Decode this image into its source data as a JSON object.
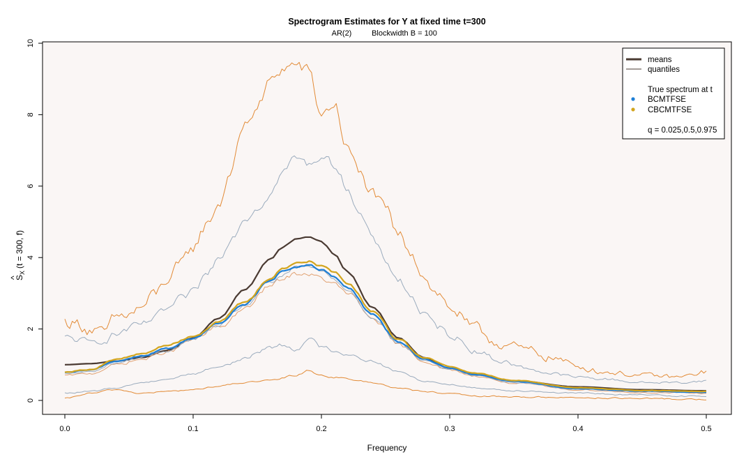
{
  "chart_data": {
    "type": "line",
    "title": "Spectrogram Estimates for Y at fixed time t=300",
    "subtitle_left": "AR(2)",
    "subtitle_right": "Blockwidth B = 100",
    "xlabel": "Frequency",
    "ylabel_hat": "^",
    "ylabel_s": "S",
    "ylabel_sub": "X",
    "ylabel_rest": "(t = 300, f)",
    "xlim": [
      0.0,
      0.5
    ],
    "ylim": [
      0,
      10
    ],
    "xticks": [
      0.0,
      0.1,
      0.2,
      0.3,
      0.4,
      0.5
    ],
    "xtick_labels": [
      "0.0",
      "0.1",
      "0.2",
      "0.3",
      "0.4",
      "0.5"
    ],
    "yticks": [
      0,
      2,
      4,
      6,
      8,
      10
    ],
    "ytick_labels": [
      "0",
      "2",
      "4",
      "6",
      "8",
      "10"
    ],
    "background_color": "#faf6f5",
    "legend": {
      "placement": "top-right",
      "entries": [
        {
          "label": "means",
          "kind": "thick-line",
          "color": "#4a3a32"
        },
        {
          "label": "quantiles",
          "kind": "thin-line",
          "color": "#4a3a32"
        },
        {
          "label": "",
          "kind": "blank"
        },
        {
          "label": "True spectrum at t",
          "kind": "text"
        },
        {
          "label": "BCMTFSE",
          "kind": "point",
          "color": "#1e7fd6"
        },
        {
          "label": "CBCMTFSE",
          "kind": "point",
          "color": "#d2a51e"
        },
        {
          "label": "",
          "kind": "blank"
        },
        {
          "label": "q = 0.025,0.5,0.975",
          "kind": "text"
        }
      ]
    },
    "series": [
      {
        "role": "true-spectrum",
        "color": "#4a3a32",
        "width": 2.2,
        "noise": 0,
        "x": [
          0,
          0.02,
          0.04,
          0.06,
          0.08,
          0.1,
          0.12,
          0.14,
          0.16,
          0.17,
          0.18,
          0.19,
          0.2,
          0.21,
          0.22,
          0.24,
          0.26,
          0.28,
          0.3,
          0.32,
          0.35,
          0.4,
          0.45,
          0.5
        ],
        "y": [
          1.0,
          1.03,
          1.1,
          1.2,
          1.4,
          1.75,
          2.3,
          3.1,
          3.95,
          4.3,
          4.52,
          4.58,
          4.45,
          4.1,
          3.6,
          2.6,
          1.75,
          1.2,
          0.9,
          0.72,
          0.55,
          0.38,
          0.3,
          0.27
        ]
      },
      {
        "role": "CBCMTFSE-q0.975",
        "color": "#e28a35",
        "width": 1.0,
        "noise": 0.16,
        "x": [
          0,
          0.01,
          0.02,
          0.03,
          0.04,
          0.05,
          0.06,
          0.07,
          0.08,
          0.09,
          0.1,
          0.11,
          0.12,
          0.13,
          0.14,
          0.15,
          0.16,
          0.17,
          0.18,
          0.19,
          0.2,
          0.21,
          0.22,
          0.23,
          0.24,
          0.25,
          0.26,
          0.27,
          0.28,
          0.29,
          0.3,
          0.32,
          0.34,
          0.36,
          0.38,
          0.4,
          0.42,
          0.45,
          0.48,
          0.5
        ],
        "y": [
          2.2,
          2.15,
          2.0,
          1.85,
          2.3,
          2.4,
          2.6,
          2.95,
          3.4,
          3.75,
          4.3,
          4.9,
          5.5,
          6.5,
          7.7,
          8.2,
          8.9,
          9.3,
          9.4,
          9.2,
          8.0,
          8.3,
          7.1,
          6.3,
          5.8,
          5.3,
          4.6,
          4.2,
          3.5,
          3.0,
          2.6,
          1.95,
          1.6,
          1.4,
          1.2,
          0.95,
          0.8,
          0.7,
          0.65,
          0.8
        ]
      },
      {
        "role": "BCMTFSE-q0.975",
        "color": "#9aabbd",
        "width": 1.0,
        "noise": 0.1,
        "x": [
          0,
          0.01,
          0.02,
          0.03,
          0.04,
          0.05,
          0.06,
          0.07,
          0.08,
          0.09,
          0.1,
          0.11,
          0.12,
          0.13,
          0.14,
          0.15,
          0.16,
          0.17,
          0.18,
          0.19,
          0.2,
          0.21,
          0.22,
          0.23,
          0.24,
          0.25,
          0.26,
          0.27,
          0.28,
          0.29,
          0.3,
          0.32,
          0.34,
          0.36,
          0.38,
          0.4,
          0.42,
          0.45,
          0.48,
          0.5
        ],
        "y": [
          1.75,
          1.7,
          1.6,
          1.7,
          1.85,
          2.0,
          2.1,
          2.3,
          2.55,
          2.8,
          3.0,
          3.5,
          4.0,
          4.6,
          5.1,
          5.4,
          5.8,
          6.4,
          6.8,
          6.6,
          6.85,
          6.6,
          6.0,
          5.2,
          4.5,
          3.9,
          3.4,
          2.9,
          2.4,
          2.05,
          1.85,
          1.4,
          1.1,
          0.9,
          0.75,
          0.65,
          0.6,
          0.5,
          0.5,
          0.55
        ]
      },
      {
        "role": "CBCMTFSE-q0.5",
        "color": "#e0a070",
        "width": 1.0,
        "noise": 0.06,
        "x": [
          0,
          0.02,
          0.04,
          0.06,
          0.08,
          0.1,
          0.12,
          0.14,
          0.16,
          0.17,
          0.18,
          0.19,
          0.2,
          0.21,
          0.22,
          0.24,
          0.26,
          0.28,
          0.3,
          0.32,
          0.35,
          0.4,
          0.45,
          0.5
        ],
        "y": [
          0.7,
          0.75,
          1.0,
          1.15,
          1.35,
          1.7,
          2.05,
          2.55,
          3.2,
          3.4,
          3.55,
          3.55,
          3.4,
          3.25,
          3.0,
          2.3,
          1.55,
          1.1,
          0.85,
          0.68,
          0.48,
          0.3,
          0.22,
          0.2
        ]
      },
      {
        "role": "BCMTFSE-q0.5",
        "color": "#9aabbd",
        "width": 1.0,
        "noise": 0.05,
        "x": [
          0,
          0.02,
          0.04,
          0.06,
          0.08,
          0.1,
          0.12,
          0.14,
          0.16,
          0.17,
          0.18,
          0.19,
          0.2,
          0.21,
          0.22,
          0.24,
          0.26,
          0.28,
          0.3,
          0.32,
          0.35,
          0.4,
          0.45,
          0.5
        ],
        "y": [
          0.75,
          0.8,
          1.05,
          1.2,
          1.4,
          1.7,
          2.1,
          2.65,
          3.3,
          3.5,
          3.7,
          3.75,
          3.6,
          3.4,
          3.1,
          2.35,
          1.6,
          1.12,
          0.87,
          0.7,
          0.5,
          0.32,
          0.25,
          0.22
        ]
      },
      {
        "role": "BCMTFSE-q0.025",
        "color": "#9aabbd",
        "width": 1.0,
        "noise": 0.07,
        "x": [
          0,
          0.02,
          0.04,
          0.06,
          0.08,
          0.1,
          0.12,
          0.14,
          0.15,
          0.16,
          0.17,
          0.18,
          0.19,
          0.2,
          0.21,
          0.22,
          0.24,
          0.26,
          0.28,
          0.3,
          0.32,
          0.35,
          0.4,
          0.45,
          0.5
        ],
        "y": [
          0.2,
          0.25,
          0.35,
          0.5,
          0.6,
          0.75,
          0.95,
          1.15,
          1.35,
          1.5,
          1.55,
          1.45,
          1.7,
          1.5,
          1.4,
          1.3,
          1.1,
          0.8,
          0.55,
          0.45,
          0.35,
          0.28,
          0.2,
          0.15,
          0.12
        ]
      },
      {
        "role": "CBCMTFSE-q0.025",
        "color": "#e28a35",
        "width": 1.0,
        "noise": 0.07,
        "x": [
          0,
          0.02,
          0.04,
          0.06,
          0.08,
          0.1,
          0.12,
          0.14,
          0.16,
          0.18,
          0.19,
          0.2,
          0.21,
          0.22,
          0.24,
          0.26,
          0.28,
          0.3,
          0.32,
          0.35,
          0.4,
          0.45,
          0.5
        ],
        "y": [
          0.05,
          0.2,
          0.3,
          0.2,
          0.25,
          0.3,
          0.4,
          0.5,
          0.55,
          0.7,
          0.85,
          0.7,
          0.65,
          0.6,
          0.5,
          0.35,
          0.25,
          0.18,
          0.12,
          0.1,
          0.08,
          0.05,
          0.03
        ]
      },
      {
        "role": "BCMTFSE-mean",
        "color": "#1e7fd6",
        "width": 2.2,
        "noise": 0.025,
        "x": [
          0,
          0.02,
          0.04,
          0.06,
          0.08,
          0.1,
          0.12,
          0.14,
          0.16,
          0.17,
          0.18,
          0.19,
          0.2,
          0.21,
          0.22,
          0.24,
          0.26,
          0.28,
          0.3,
          0.32,
          0.35,
          0.4,
          0.45,
          0.5
        ],
        "y": [
          0.78,
          0.85,
          1.1,
          1.25,
          1.45,
          1.75,
          2.15,
          2.7,
          3.35,
          3.6,
          3.75,
          3.78,
          3.65,
          3.45,
          3.15,
          2.4,
          1.65,
          1.15,
          0.9,
          0.72,
          0.53,
          0.33,
          0.26,
          0.23
        ]
      },
      {
        "role": "CBCMTFSE-mean",
        "color": "#d2a51e",
        "width": 2.2,
        "noise": 0.025,
        "x": [
          0,
          0.02,
          0.04,
          0.06,
          0.08,
          0.1,
          0.12,
          0.14,
          0.16,
          0.17,
          0.18,
          0.19,
          0.2,
          0.21,
          0.22,
          0.24,
          0.26,
          0.28,
          0.3,
          0.32,
          0.35,
          0.4,
          0.45,
          0.5
        ],
        "y": [
          0.8,
          0.87,
          1.15,
          1.3,
          1.55,
          1.8,
          2.2,
          2.75,
          3.4,
          3.7,
          3.85,
          3.9,
          3.75,
          3.6,
          3.3,
          2.5,
          1.72,
          1.2,
          0.95,
          0.76,
          0.56,
          0.36,
          0.28,
          0.25
        ]
      }
    ]
  }
}
